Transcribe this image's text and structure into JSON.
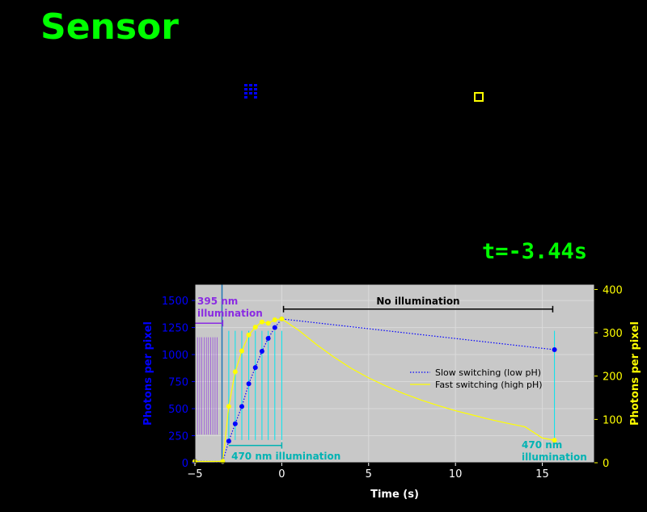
{
  "title": "Sensor",
  "time_readout": "t=-3.44s",
  "colors": {
    "background": "#000000",
    "title": "#00ff00",
    "plot_bg": "#c8c8c8",
    "slow": "#0000ff",
    "fast": "#ffff00",
    "violet": "#8a2be2",
    "cyan": "#00e5ee",
    "teal_text": "#00b3b3"
  },
  "chart_data": {
    "type": "line",
    "xlabel": "Time (s)",
    "ylabel_left": "Photons per pixel",
    "ylabel_right": "Photons per pixel",
    "xlim": [
      -5,
      18
    ],
    "ylim_left": [
      0,
      1650
    ],
    "ylim_right": [
      0,
      412
    ],
    "x_ticks": [
      "−5",
      "0",
      "5",
      "10",
      "15"
    ],
    "x_tick_values": [
      -5,
      0,
      5,
      10,
      15
    ],
    "left_ticks": [
      "0",
      "250",
      "500",
      "750",
      "1000",
      "1250",
      "1500"
    ],
    "left_tick_values": [
      0,
      250,
      500,
      750,
      1000,
      1250,
      1500
    ],
    "right_ticks": [
      "0",
      "100",
      "200",
      "300",
      "400"
    ],
    "right_tick_values": [
      0,
      100,
      200,
      300,
      400
    ],
    "grid": true,
    "legend_position": "right",
    "current_time_marker": -3.44,
    "series": [
      {
        "name": "Slow switching (low pH)",
        "axis": "left",
        "style": "dotted",
        "points": [
          [
            -5,
            15
          ],
          [
            -3.4,
            10
          ],
          [
            -3.05,
            200
          ],
          [
            -2.68,
            360
          ],
          [
            -2.3,
            520
          ],
          [
            -1.9,
            730
          ],
          [
            -1.52,
            880
          ],
          [
            -1.14,
            1030
          ],
          [
            -0.78,
            1150
          ],
          [
            -0.4,
            1250
          ],
          [
            0,
            1330
          ],
          [
            15.7,
            1045
          ]
        ]
      },
      {
        "name": "Fast switching (high pH)",
        "axis": "right",
        "style": "solid",
        "points": [
          [
            -5,
            3
          ],
          [
            -3.4,
            3
          ],
          [
            -3.05,
            130
          ],
          [
            -2.68,
            210
          ],
          [
            -2.3,
            258
          ],
          [
            -1.9,
            295
          ],
          [
            -1.52,
            313
          ],
          [
            -1.14,
            325
          ],
          [
            -0.78,
            322
          ],
          [
            -0.4,
            330
          ],
          [
            0,
            332
          ],
          [
            1,
            305
          ],
          [
            2,
            273
          ],
          [
            3,
            244
          ],
          [
            4,
            218
          ],
          [
            5,
            196
          ],
          [
            6,
            177
          ],
          [
            7,
            160
          ],
          [
            8,
            145
          ],
          [
            9,
            132
          ],
          [
            10,
            120
          ],
          [
            11,
            110
          ],
          [
            12,
            100
          ],
          [
            13,
            91
          ],
          [
            14,
            83
          ],
          [
            15,
            57
          ],
          [
            15.7,
            52
          ]
        ]
      }
    ],
    "violet_pulse_times": [
      -4.85,
      -4.72,
      -4.6,
      -4.47,
      -4.34,
      -4.22,
      -4.1,
      -3.97,
      -3.84,
      -3.72
    ],
    "cyan_pulse_times": [
      -3.05,
      -2.68,
      -2.3,
      -1.9,
      -1.52,
      -1.14,
      -0.78,
      -0.4,
      0,
      15.7
    ],
    "annotations": {
      "uv_label_line1": "395 nm",
      "uv_label_line2": "illumination",
      "blue_label": "470 nm illumination",
      "no_illum_label": "No illumination",
      "late_label_line1": "470 nm",
      "late_label_line2": "illumination"
    }
  }
}
